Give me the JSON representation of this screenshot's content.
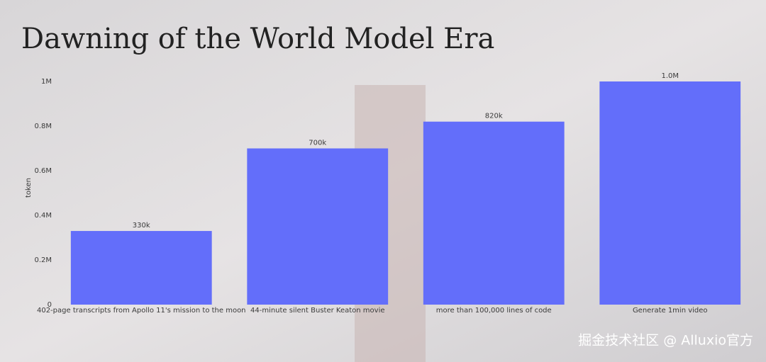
{
  "chart_data": {
    "type": "bar",
    "title": "Dawning of the World Model Era",
    "y_label": "token",
    "categories": [
      "402-page transcripts from Apollo 11's mission to the moon",
      "44-minute silent Buster Keaton movie",
      "more than 100,000 lines of code",
      "Generate 1min video"
    ],
    "values": [
      330000,
      700000,
      820000,
      1000000
    ],
    "value_labels": [
      "330k",
      "700k",
      "820k",
      "1.0M"
    ],
    "color": "#636efa",
    "ylim": [
      0,
      1050000
    ],
    "yticks": [
      0,
      {
        "value": 200000,
        "label": "0.2M"
      },
      {
        "value": 400000,
        "label": "0.4M"
      },
      {
        "value": 600000,
        "label": "0.6M"
      },
      {
        "value": 800000,
        "label": "0.8M"
      },
      {
        "value": 1000000,
        "label": "1M"
      }
    ],
    "grid": false
  },
  "watermark": "掘金技术社区 @ Alluxio官方"
}
